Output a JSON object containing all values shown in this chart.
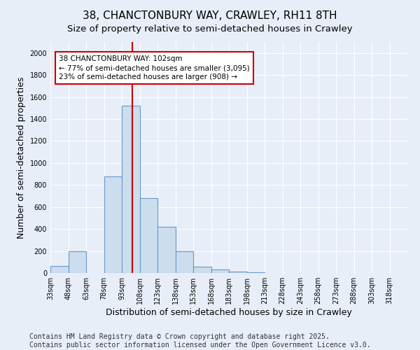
{
  "title": "38, CHANCTONBURY WAY, CRAWLEY, RH11 8TH",
  "subtitle": "Size of property relative to semi-detached houses in Crawley",
  "xlabel": "Distribution of semi-detached houses by size in Crawley",
  "ylabel": "Number of semi-detached properties",
  "footnote": "Contains HM Land Registry data © Crown copyright and database right 2025.\nContains public sector information licensed under the Open Government Licence v3.0.",
  "bins": [
    33,
    48,
    63,
    78,
    93,
    108,
    123,
    138,
    153,
    168,
    183,
    198,
    213,
    228,
    243,
    258,
    273,
    288,
    303,
    318,
    333
  ],
  "counts": [
    65,
    195,
    0,
    880,
    1520,
    680,
    420,
    195,
    60,
    30,
    15,
    5,
    0,
    0,
    0,
    0,
    0,
    0,
    0,
    0
  ],
  "bar_color": "#ccdded",
  "bar_edge_color": "#6699cc",
  "bar_edge_width": 0.8,
  "property_line_x": 102,
  "property_line_color": "#cc0000",
  "annotation_text": "38 CHANCTONBURY WAY: 102sqm\n← 77% of semi-detached houses are smaller (3,095)\n23% of semi-detached houses are larger (908) →",
  "annotation_box_color": "#ffffff",
  "annotation_box_edge_color": "#cc0000",
  "ylim": [
    0,
    2100
  ],
  "yticks": [
    0,
    200,
    400,
    600,
    800,
    1000,
    1200,
    1400,
    1600,
    1800,
    2000
  ],
  "bg_color": "#e8eef8",
  "plot_bg_color": "#e8eef8",
  "grid_color": "#ffffff",
  "title_fontsize": 11,
  "subtitle_fontsize": 9.5,
  "tick_fontsize": 7,
  "label_fontsize": 9,
  "annotation_fontsize": 7.5,
  "footnote_fontsize": 7
}
